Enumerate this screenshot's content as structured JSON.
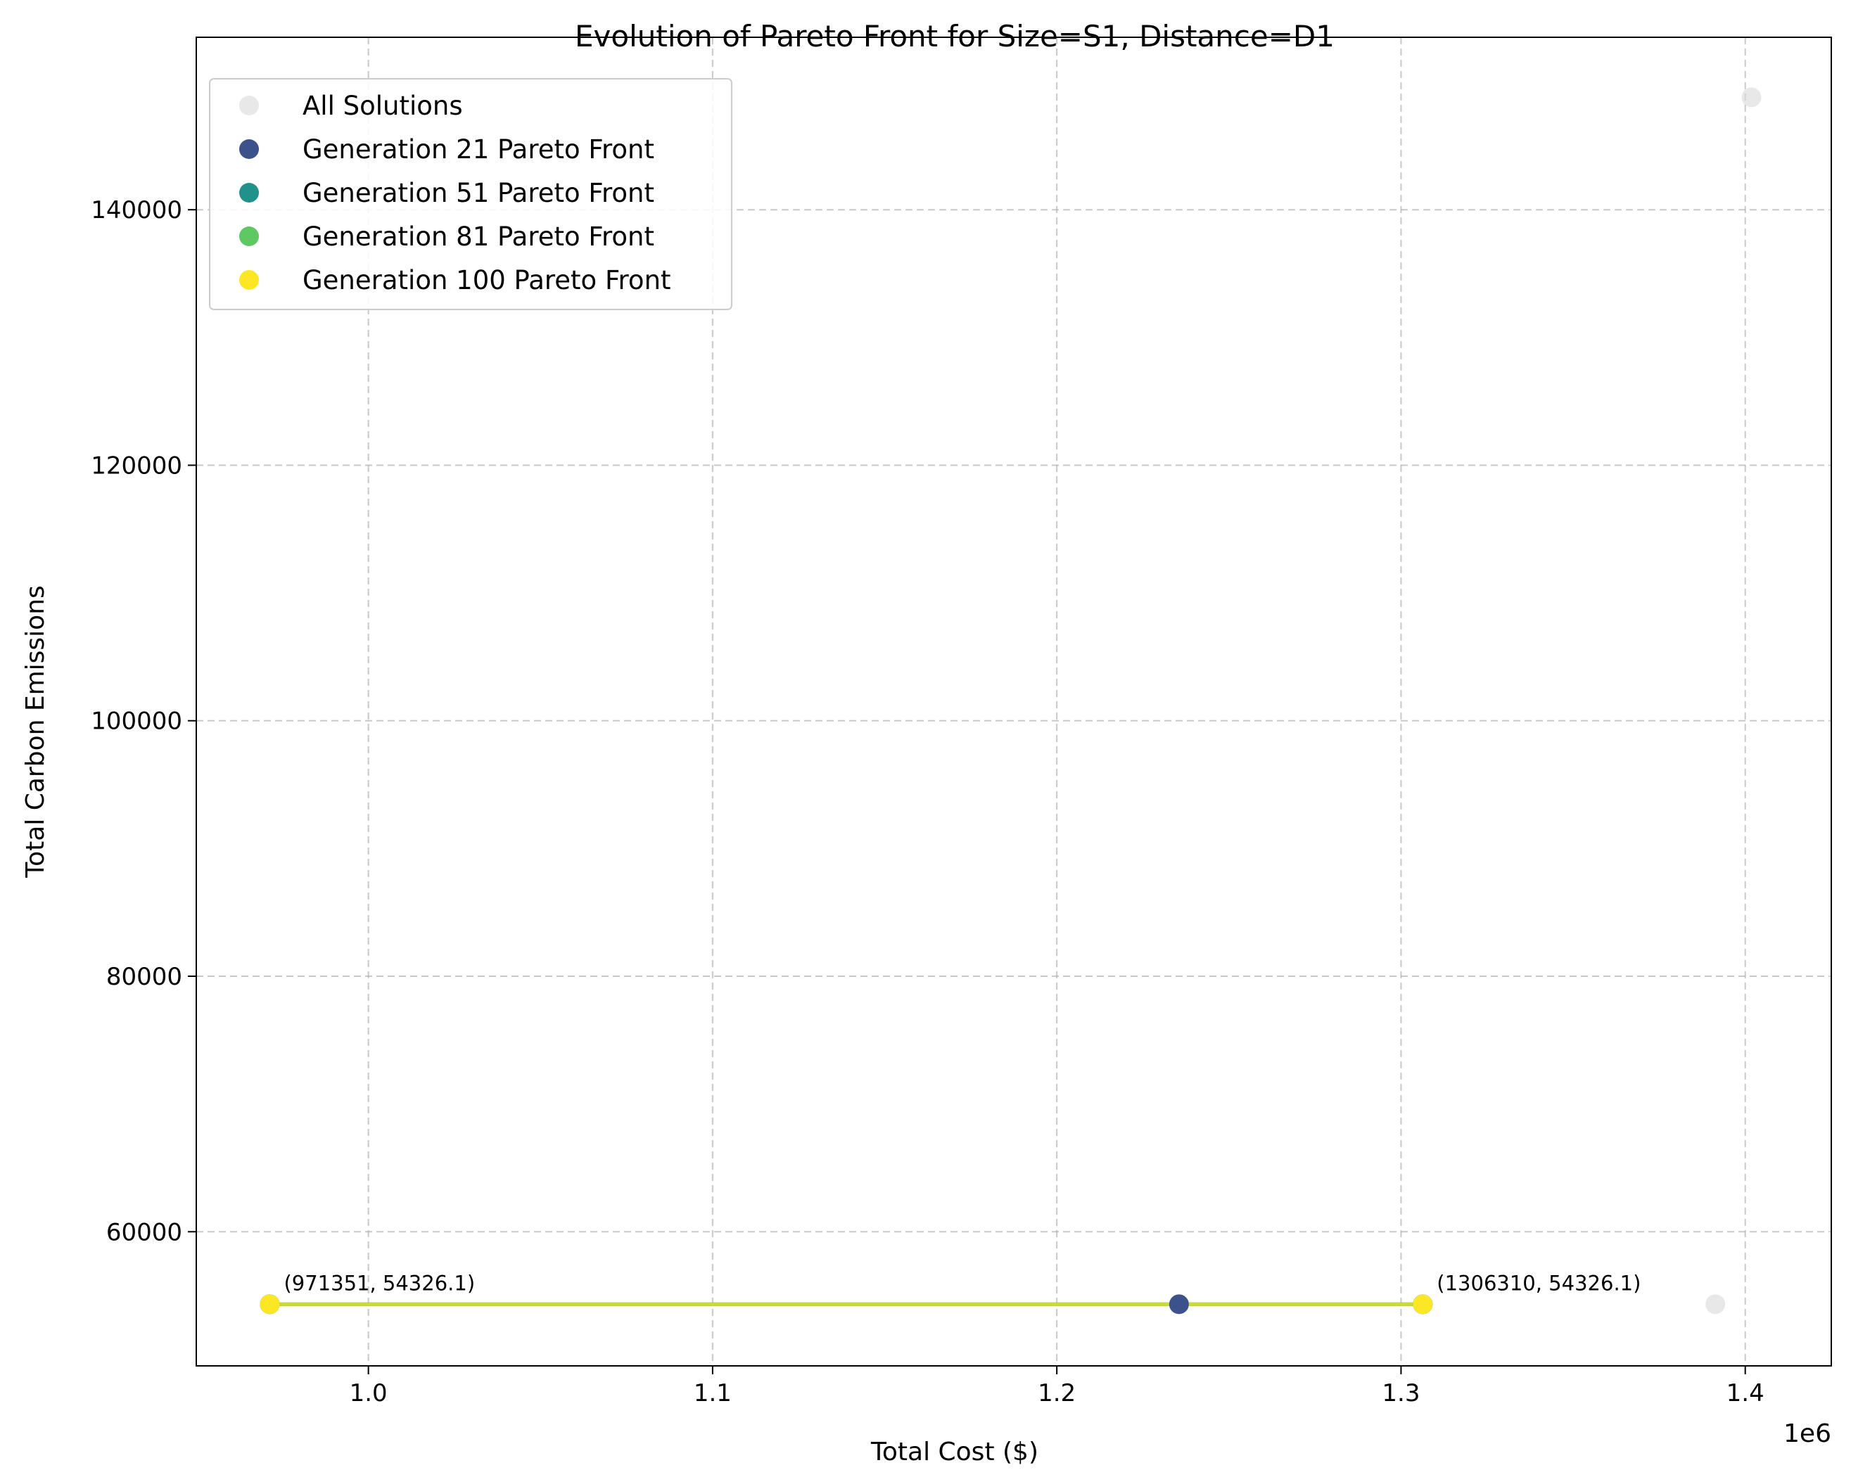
{
  "chart_data": {
    "type": "scatter",
    "title": "Evolution of Pareto Front for Size=S1, Distance=D1",
    "xlabel": "Total Cost ($)",
    "ylabel": "Total Carbon Emissions",
    "x_offset_label": "1e6",
    "xlim": [
      950000,
      1425000
    ],
    "ylim": [
      49500,
      153500
    ],
    "x_ticks": [
      1000000,
      1100000,
      1200000,
      1300000,
      1400000
    ],
    "x_tick_labels": [
      "1.0",
      "1.1",
      "1.2",
      "1.3",
      "1.4"
    ],
    "y_ticks": [
      60000,
      80000,
      100000,
      120000,
      140000
    ],
    "y_tick_labels": [
      "60000",
      "80000",
      "100000",
      "120000",
      "140000"
    ],
    "grid": true,
    "legend_position": "upper-left",
    "series": [
      {
        "name": "All Solutions",
        "color": "#d9d9d9",
        "x": [
          971351,
          1235500,
          1306310,
          1391300,
          1401800
        ],
        "y": [
          54326.1,
          54326.1,
          54326.1,
          54326.1,
          148800
        ],
        "line": false
      },
      {
        "name": "Generation 21 Pareto Front",
        "color": "#3b528b",
        "x": [
          971351,
          1235500,
          1306310
        ],
        "y": [
          54326.1,
          54326.1,
          54326.1
        ],
        "line": true
      },
      {
        "name": "Generation 51 Pareto Front",
        "color": "#21918c",
        "x": [
          971351,
          1306310
        ],
        "y": [
          54326.1,
          54326.1
        ],
        "line": true
      },
      {
        "name": "Generation 81 Pareto Front",
        "color": "#5ec962",
        "x": [
          971351,
          1306310
        ],
        "y": [
          54326.1,
          54326.1
        ],
        "line": true
      },
      {
        "name": "Generation 100 Pareto Front",
        "color": "#fde725",
        "x": [
          971351,
          1306310
        ],
        "y": [
          54326.1,
          54326.1
        ],
        "line": true
      }
    ],
    "annotations": [
      {
        "text": "(971351, 54326.1)",
        "x": 971351,
        "y": 54326.1
      },
      {
        "text": "(1306310, 54326.1)",
        "x": 1306310,
        "y": 54326.1
      }
    ]
  }
}
